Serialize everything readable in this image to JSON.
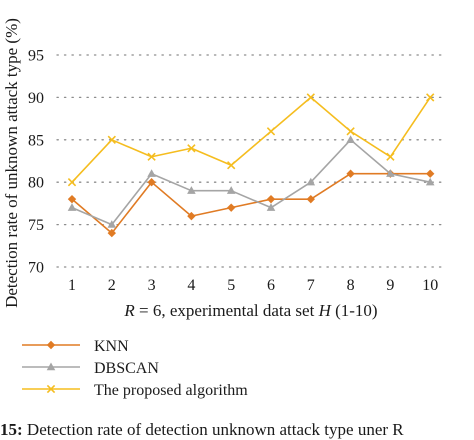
{
  "chart_data": {
    "type": "line",
    "ylabel": "Detection rate of unknown attack type (%)",
    "xlabel_prefix": "R",
    "xlabel_mid": " = 6, experimental data set ",
    "xlabel_var": "H",
    "xlabel_suffix": " (1-10)",
    "categories": [
      "1",
      "2",
      "3",
      "4",
      "5",
      "6",
      "7",
      "8",
      "9",
      "10"
    ],
    "y_ticks": [
      "70",
      "75",
      "80",
      "85",
      "90",
      "95"
    ],
    "ylim": [
      70,
      95
    ],
    "grid": "horizontal dotted",
    "legend_position": "bottom-left",
    "series": [
      {
        "name": "KNN",
        "color": "#e07b24",
        "marker": "diamond",
        "values": [
          78,
          74,
          80,
          76,
          77,
          78,
          78,
          81,
          81,
          81
        ]
      },
      {
        "name": "DBSCAN",
        "color": "#a5a5a5",
        "marker": "triangle",
        "values": [
          77,
          75,
          81,
          79,
          79,
          77,
          80,
          85,
          81,
          80
        ]
      },
      {
        "name": "The proposed algorithm",
        "color": "#f5bd1f",
        "marker": "x",
        "values": [
          80,
          85,
          83,
          84,
          82,
          86,
          90,
          86,
          83,
          90
        ]
      }
    ]
  },
  "caption": {
    "label": "15:",
    "text": " Detection rate of detection unknown attack type uner R"
  }
}
